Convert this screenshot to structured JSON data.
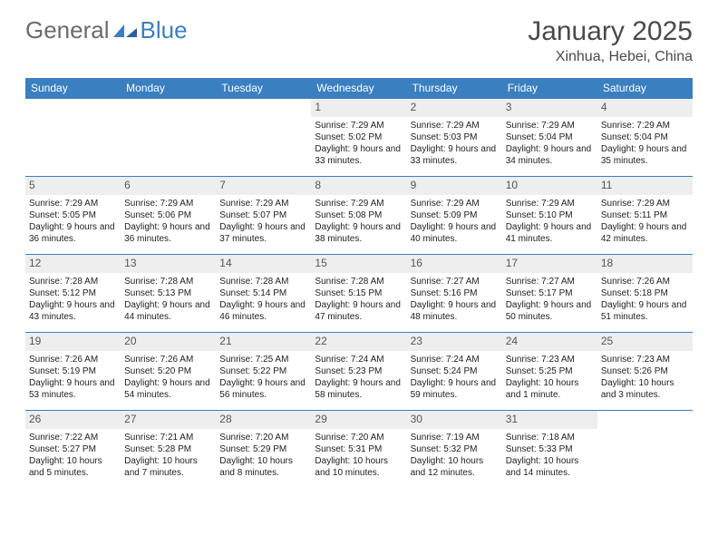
{
  "brand": {
    "general": "General",
    "blue": "Blue"
  },
  "title": "January 2025",
  "location": "Xinhua, Hebei, China",
  "colors": {
    "header_bg": "#3a7fbf",
    "header_text": "#ffffff",
    "daybar_bg": "#eeeeee",
    "border": "#3a7fbf",
    "body_text": "#222222",
    "title_text": "#4a4a4a"
  },
  "weekdays": [
    "Sunday",
    "Monday",
    "Tuesday",
    "Wednesday",
    "Thursday",
    "Friday",
    "Saturday"
  ],
  "calendar": {
    "blank_leading": 3,
    "days": [
      {
        "n": "1",
        "sunrise": "7:29 AM",
        "sunset": "5:02 PM",
        "daylight": "9 hours and 33 minutes."
      },
      {
        "n": "2",
        "sunrise": "7:29 AM",
        "sunset": "5:03 PM",
        "daylight": "9 hours and 33 minutes."
      },
      {
        "n": "3",
        "sunrise": "7:29 AM",
        "sunset": "5:04 PM",
        "daylight": "9 hours and 34 minutes."
      },
      {
        "n": "4",
        "sunrise": "7:29 AM",
        "sunset": "5:04 PM",
        "daylight": "9 hours and 35 minutes."
      },
      {
        "n": "5",
        "sunrise": "7:29 AM",
        "sunset": "5:05 PM",
        "daylight": "9 hours and 36 minutes."
      },
      {
        "n": "6",
        "sunrise": "7:29 AM",
        "sunset": "5:06 PM",
        "daylight": "9 hours and 36 minutes."
      },
      {
        "n": "7",
        "sunrise": "7:29 AM",
        "sunset": "5:07 PM",
        "daylight": "9 hours and 37 minutes."
      },
      {
        "n": "8",
        "sunrise": "7:29 AM",
        "sunset": "5:08 PM",
        "daylight": "9 hours and 38 minutes."
      },
      {
        "n": "9",
        "sunrise": "7:29 AM",
        "sunset": "5:09 PM",
        "daylight": "9 hours and 40 minutes."
      },
      {
        "n": "10",
        "sunrise": "7:29 AM",
        "sunset": "5:10 PM",
        "daylight": "9 hours and 41 minutes."
      },
      {
        "n": "11",
        "sunrise": "7:29 AM",
        "sunset": "5:11 PM",
        "daylight": "9 hours and 42 minutes."
      },
      {
        "n": "12",
        "sunrise": "7:28 AM",
        "sunset": "5:12 PM",
        "daylight": "9 hours and 43 minutes."
      },
      {
        "n": "13",
        "sunrise": "7:28 AM",
        "sunset": "5:13 PM",
        "daylight": "9 hours and 44 minutes."
      },
      {
        "n": "14",
        "sunrise": "7:28 AM",
        "sunset": "5:14 PM",
        "daylight": "9 hours and 46 minutes."
      },
      {
        "n": "15",
        "sunrise": "7:28 AM",
        "sunset": "5:15 PM",
        "daylight": "9 hours and 47 minutes."
      },
      {
        "n": "16",
        "sunrise": "7:27 AM",
        "sunset": "5:16 PM",
        "daylight": "9 hours and 48 minutes."
      },
      {
        "n": "17",
        "sunrise": "7:27 AM",
        "sunset": "5:17 PM",
        "daylight": "9 hours and 50 minutes."
      },
      {
        "n": "18",
        "sunrise": "7:26 AM",
        "sunset": "5:18 PM",
        "daylight": "9 hours and 51 minutes."
      },
      {
        "n": "19",
        "sunrise": "7:26 AM",
        "sunset": "5:19 PM",
        "daylight": "9 hours and 53 minutes."
      },
      {
        "n": "20",
        "sunrise": "7:26 AM",
        "sunset": "5:20 PM",
        "daylight": "9 hours and 54 minutes."
      },
      {
        "n": "21",
        "sunrise": "7:25 AM",
        "sunset": "5:22 PM",
        "daylight": "9 hours and 56 minutes."
      },
      {
        "n": "22",
        "sunrise": "7:24 AM",
        "sunset": "5:23 PM",
        "daylight": "9 hours and 58 minutes."
      },
      {
        "n": "23",
        "sunrise": "7:24 AM",
        "sunset": "5:24 PM",
        "daylight": "9 hours and 59 minutes."
      },
      {
        "n": "24",
        "sunrise": "7:23 AM",
        "sunset": "5:25 PM",
        "daylight": "10 hours and 1 minute."
      },
      {
        "n": "25",
        "sunrise": "7:23 AM",
        "sunset": "5:26 PM",
        "daylight": "10 hours and 3 minutes."
      },
      {
        "n": "26",
        "sunrise": "7:22 AM",
        "sunset": "5:27 PM",
        "daylight": "10 hours and 5 minutes."
      },
      {
        "n": "27",
        "sunrise": "7:21 AM",
        "sunset": "5:28 PM",
        "daylight": "10 hours and 7 minutes."
      },
      {
        "n": "28",
        "sunrise": "7:20 AM",
        "sunset": "5:29 PM",
        "daylight": "10 hours and 8 minutes."
      },
      {
        "n": "29",
        "sunrise": "7:20 AM",
        "sunset": "5:31 PM",
        "daylight": "10 hours and 10 minutes."
      },
      {
        "n": "30",
        "sunrise": "7:19 AM",
        "sunset": "5:32 PM",
        "daylight": "10 hours and 12 minutes."
      },
      {
        "n": "31",
        "sunrise": "7:18 AM",
        "sunset": "5:33 PM",
        "daylight": "10 hours and 14 minutes."
      }
    ]
  },
  "labels": {
    "sunrise": "Sunrise:",
    "sunset": "Sunset:",
    "daylight": "Daylight:"
  }
}
